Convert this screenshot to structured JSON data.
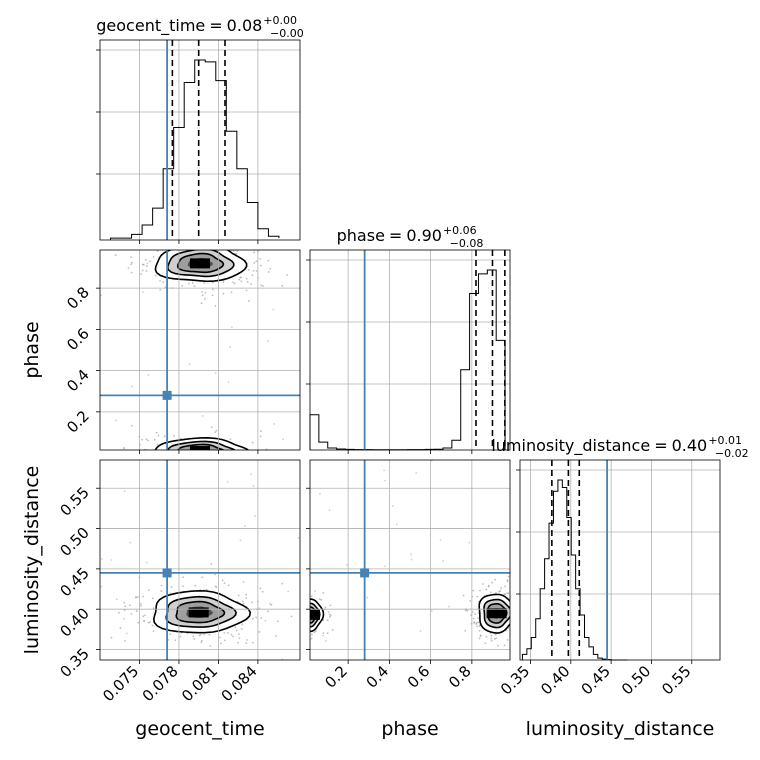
{
  "chart_data": {
    "type": "corner",
    "parameters": [
      {
        "name": "geocent_time",
        "title_value": "0.08",
        "title_plus": "+0.00",
        "title_minus": "−0.00",
        "range": [
          0.072,
          0.0872
        ],
        "ticks": [
          0.075,
          0.078,
          0.081,
          0.084
        ],
        "tick_labels": [
          "0.075",
          "0.078",
          "0.081",
          "0.084"
        ],
        "quantiles": [
          0.0775,
          0.0795,
          0.0815
        ],
        "truth": 0.0771
      },
      {
        "name": "phase",
        "title_value": "0.90",
        "title_plus": "+0.06",
        "title_minus": "−0.08",
        "range": [
          0.015,
          0.985
        ],
        "ticks": [
          0.2,
          0.4,
          0.6,
          0.8
        ],
        "tick_labels": [
          "0.2",
          "0.4",
          "0.6",
          "0.8"
        ],
        "quantiles": [
          0.82,
          0.9,
          0.96
        ],
        "truth": 0.28
      },
      {
        "name": "luminosity_distance",
        "title_value": "0.40",
        "title_plus": "+0.01",
        "title_minus": "−0.02",
        "range": [
          0.337,
          0.585
        ],
        "ticks": [
          0.35,
          0.4,
          0.45,
          0.5,
          0.55
        ],
        "tick_labels": [
          "0.35",
          "0.40",
          "0.45",
          "0.50",
          "0.55"
        ],
        "quantiles": [
          0.3765,
          0.397,
          0.4105
        ],
        "truth": 0.445
      }
    ],
    "histograms": [
      {
        "param": "geocent_time",
        "bins": [
          0.0728,
          0.0736,
          0.0744,
          0.0752,
          0.076,
          0.0768,
          0.0776,
          0.0784,
          0.0792,
          0.08,
          0.0808,
          0.0816,
          0.0824,
          0.0832,
          0.084,
          0.0848,
          0.0856
        ],
        "counts": [
          0.01,
          0.01,
          0.03,
          0.08,
          0.17,
          0.38,
          0.6,
          0.84,
          0.96,
          0.95,
          0.85,
          0.58,
          0.38,
          0.2,
          0.06,
          0.02,
          0.01
        ]
      },
      {
        "param": "phase",
        "bins": [
          0.015,
          0.058,
          0.101,
          0.144,
          0.187,
          0.23,
          0.273,
          0.316,
          0.359,
          0.402,
          0.445,
          0.488,
          0.531,
          0.574,
          0.617,
          0.66,
          0.703,
          0.746,
          0.789,
          0.832,
          0.875,
          0.918,
          0.961
        ],
        "counts": [
          0.18,
          0.04,
          0.01,
          0.005,
          0.003,
          0.002,
          0.002,
          0.001,
          0.001,
          0.001,
          0.001,
          0.002,
          0.002,
          0.003,
          0.004,
          0.01,
          0.05,
          0.41,
          0.8,
          0.9,
          0.92,
          0.56
        ]
      },
      {
        "param": "luminosity_distance",
        "bins": [
          0.34,
          0.3455,
          0.351,
          0.3565,
          0.362,
          0.3675,
          0.373,
          0.3785,
          0.384,
          0.3895,
          0.395,
          0.4005,
          0.406,
          0.4115,
          0.417,
          0.4225,
          0.428,
          0.4335,
          0.439,
          0.4445,
          0.45,
          0.47
        ],
        "counts": [
          0.03,
          0.06,
          0.12,
          0.22,
          0.38,
          0.54,
          0.73,
          0.9,
          0.96,
          0.92,
          0.76,
          0.56,
          0.38,
          0.24,
          0.12,
          0.07,
          0.03,
          0.01,
          0.005,
          0.002,
          0.0
        ]
      }
    ],
    "density_2d": [
      {
        "x": "geocent_time",
        "y": "phase",
        "modes": [
          {
            "x": 0.0796,
            "y": 0.92,
            "sx": 0.0017,
            "sy": 0.045,
            "weight": 1.0
          },
          {
            "x": 0.0796,
            "y": 0.01,
            "sx": 0.0018,
            "sy": 0.03,
            "weight": 0.5
          }
        ]
      },
      {
        "x": "geocent_time",
        "y": "luminosity_distance",
        "modes": [
          {
            "x": 0.0795,
            "y": 0.396,
            "sx": 0.0018,
            "sy": 0.013,
            "weight": 1.0
          }
        ]
      },
      {
        "x": "phase",
        "y": "luminosity_distance",
        "modes": [
          {
            "x": 0.92,
            "y": 0.395,
            "sx": 0.045,
            "sy": 0.012,
            "weight": 1.0
          },
          {
            "x": 0.015,
            "y": 0.393,
            "sx": 0.03,
            "sy": 0.01,
            "weight": 0.45
          }
        ]
      }
    ],
    "truth_color": "#4682b4",
    "grid": true
  }
}
